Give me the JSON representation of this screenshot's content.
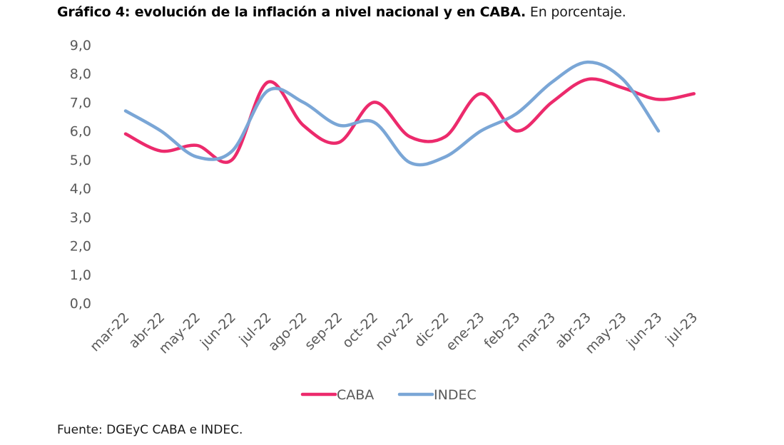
{
  "title_bold": "Gráfico 4: evolución de la inflación a nivel nacional y en CABA.",
  "title_rest": " En porcentaje.",
  "source": "Fuente: DGEyC CABA e INDEC.",
  "chart_data": {
    "type": "line",
    "categories": [
      "mar-22",
      "abr-22",
      "may-22",
      "jun-22",
      "jul-22",
      "ago-22",
      "sep-22",
      "oct-22",
      "nov-22",
      "dic-22",
      "ene-23",
      "feb-23",
      "mar-23",
      "abr-23",
      "may-23",
      "jun-23",
      "jul-23"
    ],
    "series": [
      {
        "name": "CABA",
        "color": "#ec2a6c",
        "values": [
          5.9,
          5.3,
          5.5,
          5.0,
          7.7,
          6.2,
          5.6,
          7.0,
          5.8,
          5.8,
          7.3,
          6.0,
          7.0,
          7.8,
          7.5,
          7.1,
          7.3
        ]
      },
      {
        "name": "INDEC",
        "color": "#7aa6d6",
        "values": [
          6.7,
          6.0,
          5.1,
          5.3,
          7.4,
          7.0,
          6.2,
          6.3,
          4.9,
          5.1,
          6.0,
          6.6,
          7.7,
          8.4,
          7.8,
          6.0,
          null
        ]
      }
    ],
    "ylim": [
      0,
      9
    ],
    "yticks": [
      "0,0",
      "1,0",
      "2,0",
      "3,0",
      "4,0",
      "5,0",
      "6,0",
      "7,0",
      "8,0",
      "9,0"
    ],
    "legend_position": "bottom",
    "grid": false
  }
}
